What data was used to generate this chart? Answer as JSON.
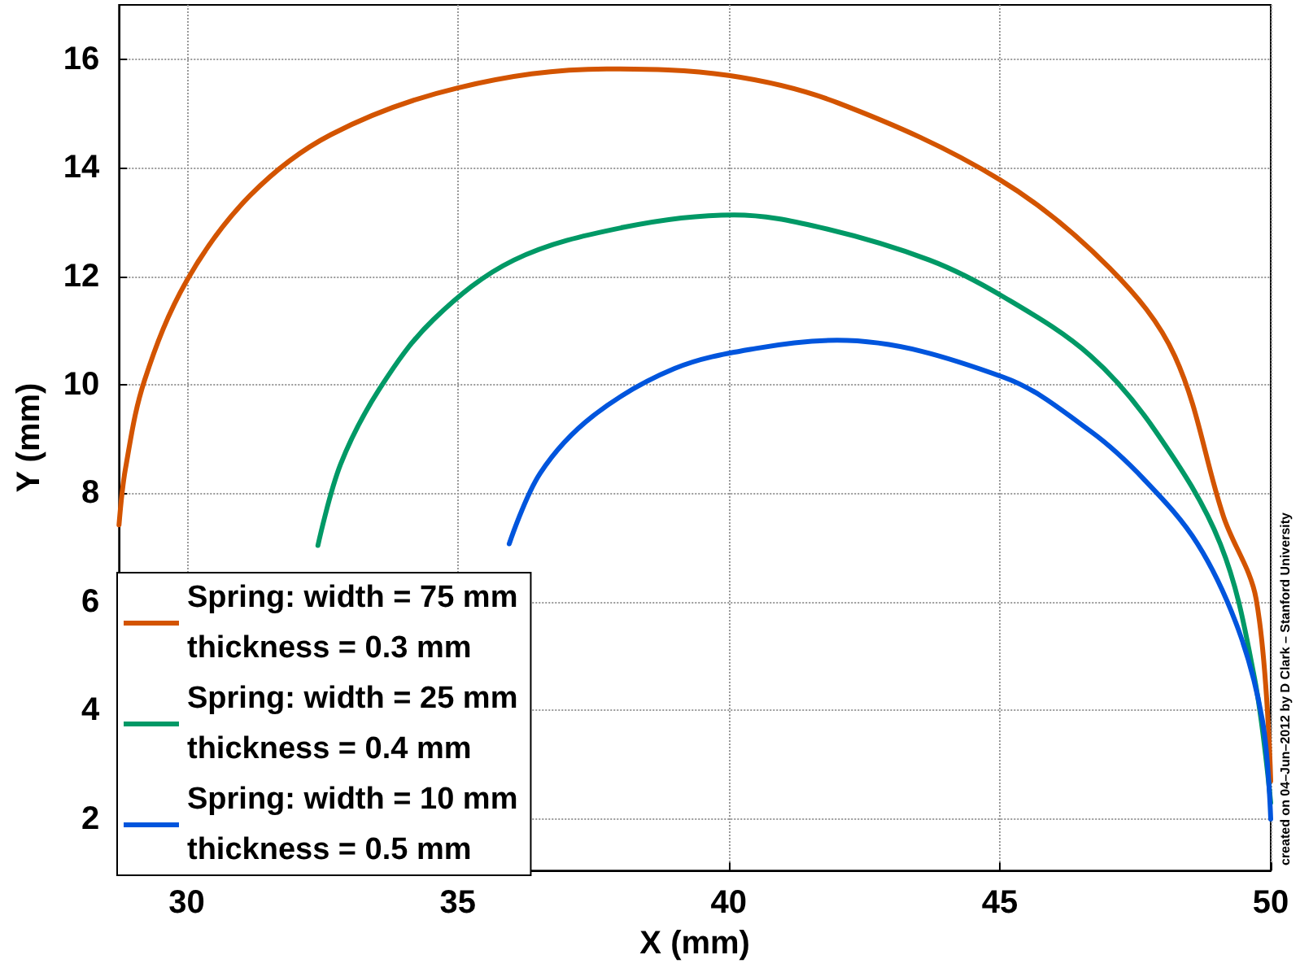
{
  "chart_data": {
    "type": "line",
    "xlabel": "X (mm)",
    "ylabel": "Y (mm)",
    "xlim": [
      28.75,
      50
    ],
    "ylim": [
      1.05,
      17
    ],
    "xticks": [
      30,
      35,
      40,
      45,
      50
    ],
    "yticks": [
      2,
      4,
      6,
      8,
      10,
      12,
      14,
      16
    ],
    "grid": true,
    "legend": "bottom left",
    "marker": "none",
    "line_style": "solid",
    "annotations": [
      "created on 04–Jun–2012 by D Clark – Stanford University"
    ],
    "series": [
      {
        "name": "Spring: width = 75 mm\nthickness = 0.3 mm",
        "color": "#d35400",
        "x": [
          28.75,
          28.87,
          29.22,
          30,
          31.17,
          32.66,
          35,
          37.75,
          40,
          42,
          45,
          47.03,
          48.23,
          49.13,
          49.73,
          50
        ],
        "values": [
          7.42,
          8.46,
          10.08,
          11.92,
          13.49,
          14.61,
          15.47,
          15.82,
          15.7,
          15.2,
          13.78,
          12.15,
          10.53,
          7.57,
          6.06,
          2.7
        ]
      },
      {
        "name": "Spring: width = 25 mm\nthickness = 0.4 mm",
        "color": "#009966",
        "x": [
          32.42,
          32.84,
          33.56,
          34.55,
          36.04,
          38.05,
          40.1,
          41.69,
          43.7,
          45.07,
          46.68,
          47.88,
          49.07,
          49.7,
          50
        ],
        "values": [
          7.04,
          8.54,
          9.93,
          11.2,
          12.3,
          12.9,
          13.13,
          12.9,
          12.3,
          11.62,
          10.53,
          9.14,
          7.07,
          4.6,
          2.3
        ]
      },
      {
        "name": "Spring: width = 10 mm\nthickness = 0.5 mm",
        "color": "#0055dd",
        "x": [
          35.95,
          36.52,
          37.5,
          39,
          40.5,
          42,
          45.07,
          46.68,
          47.67,
          48.65,
          49.4,
          49.85,
          50
        ],
        "values": [
          7.07,
          8.37,
          9.43,
          10.3,
          10.67,
          10.82,
          10.14,
          9.14,
          8.25,
          7.07,
          5.5,
          3.8,
          2.0
        ]
      }
    ]
  }
}
